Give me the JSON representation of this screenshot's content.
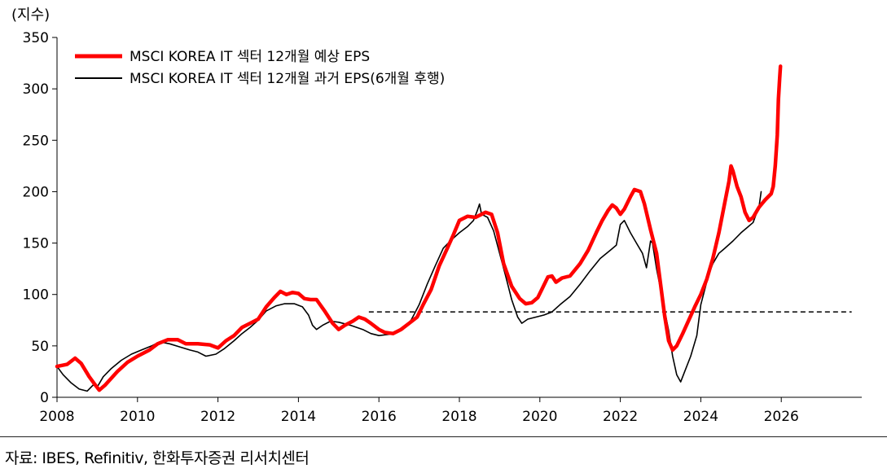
{
  "chart_data": {
    "type": "line",
    "ylabel": "(지수)",
    "xlabel": "",
    "ylim": [
      0,
      350
    ],
    "xlim": [
      2008,
      2028
    ],
    "y_ticks": [
      0,
      50,
      100,
      150,
      200,
      250,
      300,
      350
    ],
    "x_ticks": [
      2008,
      2010,
      2012,
      2014,
      2016,
      2018,
      2020,
      2022,
      2024,
      2026
    ],
    "grid": false,
    "legend_position": "top-left",
    "series": [
      {
        "name": "MSCI KOREA IT 섹터 12개월 예상 EPS",
        "color": "#ff0000",
        "points": [
          [
            2008.0,
            30
          ],
          [
            2008.25,
            32
          ],
          [
            2008.45,
            38
          ],
          [
            2008.6,
            33
          ],
          [
            2008.8,
            20
          ],
          [
            2008.95,
            12
          ],
          [
            2009.05,
            7
          ],
          [
            2009.2,
            12
          ],
          [
            2009.5,
            25
          ],
          [
            2009.75,
            34
          ],
          [
            2010.0,
            40
          ],
          [
            2010.3,
            46
          ],
          [
            2010.5,
            52
          ],
          [
            2010.75,
            56
          ],
          [
            2011.0,
            56
          ],
          [
            2011.2,
            52
          ],
          [
            2011.5,
            52
          ],
          [
            2011.8,
            51
          ],
          [
            2012.0,
            48
          ],
          [
            2012.2,
            55
          ],
          [
            2012.4,
            60
          ],
          [
            2012.6,
            68
          ],
          [
            2012.8,
            72
          ],
          [
            2013.0,
            76
          ],
          [
            2013.2,
            88
          ],
          [
            2013.4,
            97
          ],
          [
            2013.55,
            103
          ],
          [
            2013.7,
            100
          ],
          [
            2013.85,
            102
          ],
          [
            2014.0,
            101
          ],
          [
            2014.15,
            96
          ],
          [
            2014.3,
            95
          ],
          [
            2014.45,
            95
          ],
          [
            2014.65,
            84
          ],
          [
            2014.85,
            72
          ],
          [
            2015.0,
            66
          ],
          [
            2015.15,
            70
          ],
          [
            2015.35,
            74
          ],
          [
            2015.5,
            78
          ],
          [
            2015.65,
            76
          ],
          [
            2015.8,
            72
          ],
          [
            2016.0,
            66
          ],
          [
            2016.15,
            63
          ],
          [
            2016.35,
            62
          ],
          [
            2016.55,
            66
          ],
          [
            2016.75,
            72
          ],
          [
            2016.95,
            78
          ],
          [
            2017.1,
            90
          ],
          [
            2017.3,
            105
          ],
          [
            2017.5,
            128
          ],
          [
            2017.7,
            145
          ],
          [
            2017.85,
            158
          ],
          [
            2018.0,
            172
          ],
          [
            2018.2,
            176
          ],
          [
            2018.4,
            175
          ],
          [
            2018.55,
            178
          ],
          [
            2018.65,
            180
          ],
          [
            2018.8,
            178
          ],
          [
            2018.95,
            160
          ],
          [
            2019.1,
            130
          ],
          [
            2019.3,
            108
          ],
          [
            2019.5,
            96
          ],
          [
            2019.65,
            91
          ],
          [
            2019.8,
            92
          ],
          [
            2019.95,
            97
          ],
          [
            2020.05,
            105
          ],
          [
            2020.2,
            117
          ],
          [
            2020.3,
            118
          ],
          [
            2020.4,
            112
          ],
          [
            2020.55,
            116
          ],
          [
            2020.75,
            118
          ],
          [
            2021.0,
            130
          ],
          [
            2021.2,
            143
          ],
          [
            2021.4,
            160
          ],
          [
            2021.55,
            172
          ],
          [
            2021.7,
            182
          ],
          [
            2021.8,
            187
          ],
          [
            2021.9,
            184
          ],
          [
            2022.0,
            178
          ],
          [
            2022.1,
            183
          ],
          [
            2022.25,
            195
          ],
          [
            2022.35,
            202
          ],
          [
            2022.5,
            200
          ],
          [
            2022.6,
            188
          ],
          [
            2022.75,
            163
          ],
          [
            2022.9,
            140
          ],
          [
            2023.0,
            110
          ],
          [
            2023.1,
            80
          ],
          [
            2023.2,
            55
          ],
          [
            2023.3,
            46
          ],
          [
            2023.4,
            50
          ],
          [
            2023.55,
            62
          ],
          [
            2023.7,
            75
          ],
          [
            2023.85,
            88
          ],
          [
            2024.0,
            100
          ],
          [
            2024.15,
            115
          ],
          [
            2024.3,
            135
          ],
          [
            2024.45,
            160
          ],
          [
            2024.6,
            190
          ],
          [
            2024.7,
            210
          ],
          [
            2024.75,
            225
          ],
          [
            2024.8,
            220
          ],
          [
            2024.9,
            205
          ],
          [
            2025.0,
            195
          ],
          [
            2025.1,
            180
          ],
          [
            2025.2,
            172
          ],
          [
            2025.3,
            175
          ],
          [
            2025.45,
            185
          ],
          [
            2025.6,
            192
          ],
          [
            2025.75,
            198
          ],
          [
            2025.8,
            205
          ],
          [
            2025.85,
            225
          ],
          [
            2025.9,
            255
          ],
          [
            2025.93,
            290
          ],
          [
            2025.96,
            310
          ],
          [
            2025.98,
            322
          ]
        ]
      },
      {
        "name": "MSCI KOREA IT 섹터 12개월 과거 EPS(6개월 후행)",
        "color": "#000000",
        "points": [
          [
            2008.0,
            30
          ],
          [
            2008.15,
            22
          ],
          [
            2008.35,
            14
          ],
          [
            2008.55,
            8
          ],
          [
            2008.75,
            6
          ],
          [
            2008.9,
            12
          ],
          [
            2009.0,
            10
          ],
          [
            2009.15,
            20
          ],
          [
            2009.35,
            28
          ],
          [
            2009.6,
            36
          ],
          [
            2009.85,
            42
          ],
          [
            2010.1,
            46
          ],
          [
            2010.35,
            50
          ],
          [
            2010.55,
            54
          ],
          [
            2010.8,
            52
          ],
          [
            2011.05,
            49
          ],
          [
            2011.3,
            46
          ],
          [
            2011.5,
            44
          ],
          [
            2011.7,
            40
          ],
          [
            2011.95,
            42
          ],
          [
            2012.15,
            47
          ],
          [
            2012.4,
            55
          ],
          [
            2012.6,
            62
          ],
          [
            2012.8,
            68
          ],
          [
            2013.0,
            75
          ],
          [
            2013.2,
            84
          ],
          [
            2013.45,
            89
          ],
          [
            2013.65,
            91
          ],
          [
            2013.9,
            91
          ],
          [
            2014.1,
            88
          ],
          [
            2014.25,
            80
          ],
          [
            2014.35,
            70
          ],
          [
            2014.45,
            66
          ],
          [
            2014.6,
            70
          ],
          [
            2014.8,
            74
          ],
          [
            2015.0,
            73
          ],
          [
            2015.3,
            70
          ],
          [
            2015.6,
            66
          ],
          [
            2015.8,
            62
          ],
          [
            2016.0,
            60
          ],
          [
            2016.2,
            61
          ],
          [
            2016.4,
            62
          ],
          [
            2016.6,
            66
          ],
          [
            2016.8,
            75
          ],
          [
            2017.0,
            90
          ],
          [
            2017.2,
            110
          ],
          [
            2017.4,
            128
          ],
          [
            2017.6,
            145
          ],
          [
            2017.8,
            153
          ],
          [
            2018.0,
            160
          ],
          [
            2018.2,
            166
          ],
          [
            2018.35,
            172
          ],
          [
            2018.45,
            182
          ],
          [
            2018.5,
            188
          ],
          [
            2018.55,
            178
          ],
          [
            2018.7,
            175
          ],
          [
            2018.85,
            162
          ],
          [
            2019.0,
            140
          ],
          [
            2019.15,
            118
          ],
          [
            2019.3,
            95
          ],
          [
            2019.45,
            78
          ],
          [
            2019.55,
            72
          ],
          [
            2019.7,
            76
          ],
          [
            2019.9,
            78
          ],
          [
            2020.1,
            80
          ],
          [
            2020.3,
            83
          ],
          [
            2020.5,
            90
          ],
          [
            2020.75,
            98
          ],
          [
            2021.0,
            110
          ],
          [
            2021.25,
            123
          ],
          [
            2021.5,
            135
          ],
          [
            2021.75,
            143
          ],
          [
            2021.9,
            148
          ],
          [
            2022.0,
            168
          ],
          [
            2022.1,
            172
          ],
          [
            2022.25,
            160
          ],
          [
            2022.4,
            150
          ],
          [
            2022.55,
            140
          ],
          [
            2022.65,
            126
          ],
          [
            2022.75,
            152
          ],
          [
            2022.8,
            150
          ],
          [
            2022.9,
            125
          ],
          [
            2023.0,
            105
          ],
          [
            2023.1,
            85
          ],
          [
            2023.2,
            65
          ],
          [
            2023.3,
            40
          ],
          [
            2023.4,
            22
          ],
          [
            2023.5,
            15
          ],
          [
            2023.6,
            25
          ],
          [
            2023.75,
            40
          ],
          [
            2023.9,
            60
          ],
          [
            2024.0,
            90
          ],
          [
            2024.1,
            105
          ],
          [
            2024.2,
            120
          ],
          [
            2024.3,
            130
          ],
          [
            2024.45,
            140
          ],
          [
            2024.6,
            145
          ],
          [
            2024.8,
            152
          ],
          [
            2025.0,
            160
          ],
          [
            2025.15,
            165
          ],
          [
            2025.3,
            170
          ],
          [
            2025.45,
            186
          ],
          [
            2025.5,
            200
          ]
        ]
      }
    ],
    "reference_line": {
      "y": 83,
      "x_start": 2015.75,
      "x_end": 2027.75,
      "style": "dashed",
      "color": "#000000"
    }
  },
  "source_note": "자료: IBES, Refinitiv, 한화투자증권 리서치센터"
}
